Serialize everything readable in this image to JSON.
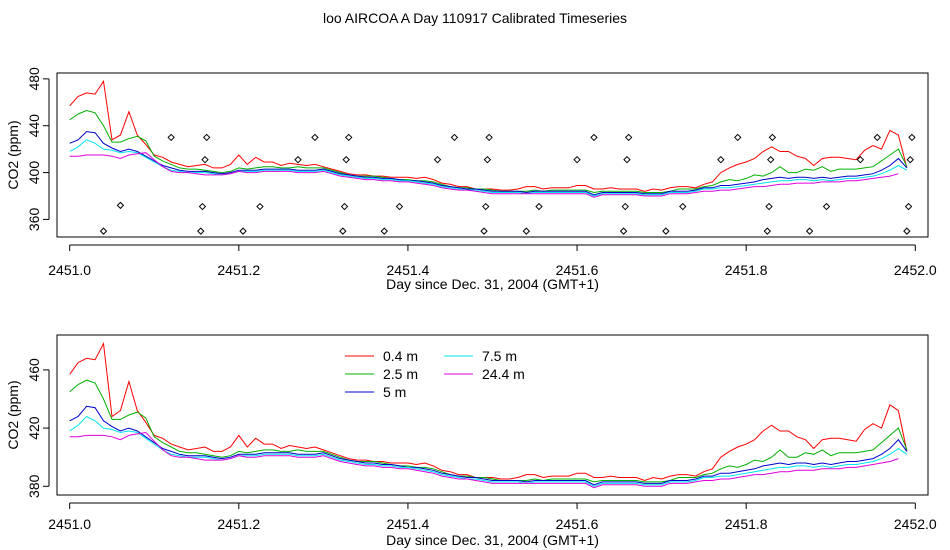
{
  "title": "loo AIRCOA A  Day 110917  Calibrated Timeseries",
  "chart_data": [
    {
      "type": "line",
      "xlabel": "Day since Dec. 31, 2004 (GMT+1)",
      "ylabel": "CO2 (ppm)",
      "xlim": [
        2450.985,
        2452.015
      ],
      "ylim": [
        345,
        485
      ],
      "xticks": [
        2451.0,
        2451.2,
        2451.4,
        2451.6,
        2451.8,
        2452.0
      ],
      "xtick_labels": [
        "2451.0",
        "2451.2",
        "2451.4",
        "2451.6",
        "2451.8",
        "2452.0"
      ],
      "yticks": [
        360,
        400,
        440,
        480
      ],
      "ytick_labels": [
        "360",
        "400",
        "440",
        "480"
      ],
      "legend": null,
      "series_ref": "series",
      "scatter_points": {
        "x": [
          2451.04,
          2451.06,
          2451.12,
          2451.155,
          2451.157,
          2451.16,
          2451.162,
          2451.205,
          2451.225,
          2451.27,
          2451.29,
          2451.323,
          2451.325,
          2451.327,
          2451.33,
          2451.372,
          2451.39,
          2451.435,
          2451.455,
          2451.49,
          2451.492,
          2451.494,
          2451.496,
          2451.54,
          2451.555,
          2451.6,
          2451.62,
          2451.655,
          2451.657,
          2451.659,
          2451.661,
          2451.705,
          2451.725,
          2451.77,
          2451.79,
          2451.825,
          2451.827,
          2451.829,
          2451.831,
          2451.875,
          2451.895,
          2451.935,
          2451.955,
          2451.99,
          2451.992,
          2451.994,
          2451.996
        ],
        "y": [
          350,
          372,
          430,
          350,
          371,
          411,
          430,
          350,
          371,
          411,
          430,
          350,
          371,
          411,
          430,
          350,
          371,
          411,
          430,
          350,
          371,
          411,
          430,
          350,
          371,
          411,
          430,
          350,
          371,
          411,
          430,
          350,
          371,
          411,
          430,
          350,
          371,
          411,
          430,
          350,
          371,
          411,
          430,
          350,
          371,
          411,
          430
        ]
      }
    },
    {
      "type": "line",
      "xlabel": "Day since Dec. 31, 2004 (GMT+1)",
      "ylabel": "CO2 (ppm)",
      "xlim": [
        2450.985,
        2452.015
      ],
      "ylim": [
        374,
        484
      ],
      "xticks": [
        2451.0,
        2451.2,
        2451.4,
        2451.6,
        2451.8,
        2452.0
      ],
      "xtick_labels": [
        "2451.0",
        "2451.2",
        "2451.4",
        "2451.6",
        "2451.8",
        "2452.0"
      ],
      "yticks": [
        380,
        420,
        460
      ],
      "ytick_labels": [
        "380",
        "420",
        "460"
      ],
      "legend": "top-center",
      "series_ref": "series"
    }
  ],
  "series": [
    {
      "name": "0.4 m",
      "color": "#ff0000",
      "x": [
        2451.0,
        2451.01,
        2451.02,
        2451.03,
        2451.04,
        2451.05,
        2451.06,
        2451.07,
        2451.08,
        2451.09,
        2451.1,
        2451.11,
        2451.12,
        2451.13,
        2451.14,
        2451.15,
        2451.16,
        2451.17,
        2451.18,
        2451.19,
        2451.2,
        2451.21,
        2451.22,
        2451.23,
        2451.24,
        2451.25,
        2451.26,
        2451.27,
        2451.28,
        2451.29,
        2451.3,
        2451.31,
        2451.32,
        2451.33,
        2451.34,
        2451.35,
        2451.36,
        2451.37,
        2451.38,
        2451.39,
        2451.4,
        2451.41,
        2451.42,
        2451.43,
        2451.44,
        2451.45,
        2451.46,
        2451.47,
        2451.48,
        2451.49,
        2451.5,
        2451.51,
        2451.52,
        2451.53,
        2451.54,
        2451.55,
        2451.56,
        2451.57,
        2451.58,
        2451.59,
        2451.6,
        2451.61,
        2451.62,
        2451.63,
        2451.64,
        2451.65,
        2451.66,
        2451.67,
        2451.68,
        2451.69,
        2451.7,
        2451.71,
        2451.72,
        2451.73,
        2451.74,
        2451.75,
        2451.76,
        2451.77,
        2451.78,
        2451.79,
        2451.8,
        2451.81,
        2451.82,
        2451.83,
        2451.84,
        2451.85,
        2451.86,
        2451.87,
        2451.88,
        2451.89,
        2451.9,
        2451.91,
        2451.92,
        2451.93,
        2451.94,
        2451.95,
        2451.96,
        2451.97,
        2451.98,
        2451.99
      ],
      "values": [
        457,
        465,
        468,
        467,
        478,
        428,
        432,
        452,
        432,
        424,
        415,
        413,
        409,
        407,
        405,
        406,
        407,
        404,
        404,
        407,
        415,
        407,
        413,
        409,
        409,
        406,
        408,
        407,
        406,
        407,
        405,
        403,
        401,
        399,
        398,
        398,
        397,
        397,
        396,
        396,
        396,
        395,
        396,
        394,
        391,
        390,
        388,
        388,
        386,
        386,
        386,
        385,
        385,
        386,
        388,
        388,
        386,
        387,
        387,
        387,
        389,
        389,
        386,
        386,
        387,
        386,
        386,
        386,
        384,
        386,
        385,
        387,
        388,
        388,
        387,
        390,
        392,
        400,
        404,
        407,
        409,
        412,
        418,
        422,
        418,
        418,
        414,
        412,
        406,
        412,
        413,
        413,
        412,
        411,
        419,
        423,
        420,
        436,
        432,
        404
      ]
    },
    {
      "name": "2.5 m",
      "color": "#00b000",
      "x": [
        2451.0,
        2451.01,
        2451.02,
        2451.03,
        2451.04,
        2451.05,
        2451.06,
        2451.07,
        2451.08,
        2451.09,
        2451.1,
        2451.11,
        2451.12,
        2451.13,
        2451.14,
        2451.15,
        2451.16,
        2451.17,
        2451.18,
        2451.19,
        2451.2,
        2451.21,
        2451.22,
        2451.23,
        2451.24,
        2451.25,
        2451.26,
        2451.27,
        2451.28,
        2451.29,
        2451.3,
        2451.31,
        2451.32,
        2451.33,
        2451.34,
        2451.35,
        2451.36,
        2451.37,
        2451.38,
        2451.39,
        2451.4,
        2451.41,
        2451.42,
        2451.43,
        2451.44,
        2451.45,
        2451.46,
        2451.47,
        2451.48,
        2451.49,
        2451.5,
        2451.51,
        2451.52,
        2451.53,
        2451.54,
        2451.55,
        2451.56,
        2451.57,
        2451.58,
        2451.59,
        2451.6,
        2451.61,
        2451.62,
        2451.63,
        2451.64,
        2451.65,
        2451.66,
        2451.67,
        2451.68,
        2451.69,
        2451.7,
        2451.71,
        2451.72,
        2451.73,
        2451.74,
        2451.75,
        2451.76,
        2451.77,
        2451.78,
        2451.79,
        2451.8,
        2451.81,
        2451.82,
        2451.83,
        2451.84,
        2451.85,
        2451.86,
        2451.87,
        2451.88,
        2451.89,
        2451.9,
        2451.91,
        2451.92,
        2451.93,
        2451.94,
        2451.95,
        2451.96,
        2451.97,
        2451.98,
        2451.99
      ],
      "values": [
        445,
        450,
        453,
        451,
        440,
        426,
        426,
        429,
        431,
        427,
        414,
        410,
        407,
        404,
        403,
        403,
        402,
        401,
        400,
        401,
        404,
        403,
        404,
        405,
        405,
        404,
        404,
        405,
        404,
        404,
        404,
        402,
        400,
        398,
        397,
        397,
        397,
        396,
        395,
        394,
        394,
        393,
        393,
        392,
        390,
        388,
        387,
        387,
        386,
        386,
        385,
        384,
        384,
        384,
        384,
        385,
        384,
        385,
        385,
        385,
        385,
        385,
        383,
        384,
        384,
        384,
        384,
        384,
        383,
        383,
        383,
        384,
        386,
        386,
        386,
        388,
        389,
        392,
        394,
        393,
        395,
        398,
        397,
        400,
        405,
        400,
        400,
        403,
        402,
        405,
        401,
        403,
        403,
        403,
        404,
        405,
        410,
        415,
        420,
        405
      ]
    },
    {
      "name": "5 m",
      "color": "#0000cc",
      "x": [
        2451.0,
        2451.01,
        2451.02,
        2451.03,
        2451.04,
        2451.05,
        2451.06,
        2451.07,
        2451.08,
        2451.09,
        2451.1,
        2451.11,
        2451.12,
        2451.13,
        2451.14,
        2451.15,
        2451.16,
        2451.17,
        2451.18,
        2451.19,
        2451.2,
        2451.21,
        2451.22,
        2451.23,
        2451.24,
        2451.25,
        2451.26,
        2451.27,
        2451.28,
        2451.29,
        2451.3,
        2451.31,
        2451.32,
        2451.33,
        2451.34,
        2451.35,
        2451.36,
        2451.37,
        2451.38,
        2451.39,
        2451.4,
        2451.41,
        2451.42,
        2451.43,
        2451.44,
        2451.45,
        2451.46,
        2451.47,
        2451.48,
        2451.49,
        2451.5,
        2451.51,
        2451.52,
        2451.53,
        2451.54,
        2451.55,
        2451.56,
        2451.57,
        2451.58,
        2451.59,
        2451.6,
        2451.61,
        2451.62,
        2451.63,
        2451.64,
        2451.65,
        2451.66,
        2451.67,
        2451.68,
        2451.69,
        2451.7,
        2451.71,
        2451.72,
        2451.73,
        2451.74,
        2451.75,
        2451.76,
        2451.77,
        2451.78,
        2451.79,
        2451.8,
        2451.81,
        2451.82,
        2451.83,
        2451.84,
        2451.85,
        2451.86,
        2451.87,
        2451.88,
        2451.89,
        2451.9,
        2451.91,
        2451.92,
        2451.93,
        2451.94,
        2451.95,
        2451.96,
        2451.97,
        2451.98,
        2451.99
      ],
      "values": [
        425,
        428,
        435,
        434,
        425,
        421,
        418,
        420,
        418,
        414,
        410,
        406,
        404,
        402,
        401,
        401,
        401,
        400,
        399,
        400,
        402,
        402,
        402,
        403,
        403,
        403,
        403,
        402,
        402,
        402,
        403,
        401,
        399,
        398,
        397,
        396,
        396,
        395,
        395,
        394,
        393,
        393,
        392,
        391,
        389,
        388,
        387,
        386,
        386,
        385,
        384,
        384,
        384,
        384,
        383,
        384,
        384,
        384,
        384,
        384,
        384,
        384,
        381,
        383,
        383,
        383,
        383,
        383,
        382,
        382,
        382,
        384,
        384,
        384,
        385,
        387,
        387,
        389,
        389,
        390,
        391,
        392,
        394,
        395,
        396,
        395,
        396,
        396,
        395,
        396,
        395,
        396,
        397,
        397,
        398,
        399,
        402,
        406,
        412,
        404
      ]
    },
    {
      "name": "7.5 m",
      "color": "#00e5ee",
      "x": [
        2451.0,
        2451.01,
        2451.02,
        2451.03,
        2451.04,
        2451.05,
        2451.06,
        2451.07,
        2451.08,
        2451.09,
        2451.1,
        2451.11,
        2451.12,
        2451.13,
        2451.14,
        2451.15,
        2451.16,
        2451.17,
        2451.18,
        2451.19,
        2451.2,
        2451.21,
        2451.22,
        2451.23,
        2451.24,
        2451.25,
        2451.26,
        2451.27,
        2451.28,
        2451.29,
        2451.3,
        2451.31,
        2451.32,
        2451.33,
        2451.34,
        2451.35,
        2451.36,
        2451.37,
        2451.38,
        2451.39,
        2451.4,
        2451.41,
        2451.42,
        2451.43,
        2451.44,
        2451.45,
        2451.46,
        2451.47,
        2451.48,
        2451.49,
        2451.5,
        2451.51,
        2451.52,
        2451.53,
        2451.54,
        2451.55,
        2451.56,
        2451.57,
        2451.58,
        2451.59,
        2451.6,
        2451.61,
        2451.62,
        2451.63,
        2451.64,
        2451.65,
        2451.66,
        2451.67,
        2451.68,
        2451.69,
        2451.7,
        2451.71,
        2451.72,
        2451.73,
        2451.74,
        2451.75,
        2451.76,
        2451.77,
        2451.78,
        2451.79,
        2451.8,
        2451.81,
        2451.82,
        2451.83,
        2451.84,
        2451.85,
        2451.86,
        2451.87,
        2451.88,
        2451.89,
        2451.9,
        2451.91,
        2451.92,
        2451.93,
        2451.94,
        2451.95,
        2451.96,
        2451.97,
        2451.98,
        2451.99
      ],
      "values": [
        418,
        422,
        428,
        425,
        420,
        419,
        417,
        418,
        417,
        413,
        409,
        405,
        402,
        401,
        400,
        400,
        400,
        399,
        398,
        399,
        401,
        401,
        401,
        402,
        402,
        402,
        402,
        401,
        401,
        401,
        402,
        400,
        398,
        397,
        396,
        395,
        395,
        394,
        394,
        393,
        393,
        392,
        391,
        390,
        388,
        387,
        386,
        385,
        385,
        384,
        383,
        383,
        383,
        383,
        382,
        383,
        383,
        383,
        383,
        383,
        383,
        383,
        380,
        382,
        382,
        382,
        382,
        382,
        381,
        381,
        381,
        383,
        383,
        383,
        384,
        386,
        386,
        387,
        387,
        388,
        389,
        390,
        391,
        392,
        393,
        393,
        394,
        394,
        393,
        394,
        393,
        394,
        395,
        395,
        396,
        397,
        399,
        402,
        406,
        402
      ]
    },
    {
      "name": "24.4 m",
      "color": "#dd00dd",
      "x": [
        2451.0,
        2451.01,
        2451.02,
        2451.03,
        2451.04,
        2451.05,
        2451.06,
        2451.07,
        2451.08,
        2451.09,
        2451.1,
        2451.11,
        2451.12,
        2451.13,
        2451.14,
        2451.15,
        2451.16,
        2451.17,
        2451.18,
        2451.19,
        2451.2,
        2451.21,
        2451.22,
        2451.23,
        2451.24,
        2451.25,
        2451.26,
        2451.27,
        2451.28,
        2451.29,
        2451.3,
        2451.31,
        2451.32,
        2451.33,
        2451.34,
        2451.35,
        2451.36,
        2451.37,
        2451.38,
        2451.39,
        2451.4,
        2451.41,
        2451.42,
        2451.43,
        2451.44,
        2451.45,
        2451.46,
        2451.47,
        2451.48,
        2451.49,
        2451.5,
        2451.51,
        2451.52,
        2451.53,
        2451.54,
        2451.55,
        2451.56,
        2451.57,
        2451.58,
        2451.59,
        2451.6,
        2451.61,
        2451.62,
        2451.63,
        2451.64,
        2451.65,
        2451.66,
        2451.67,
        2451.68,
        2451.69,
        2451.7,
        2451.71,
        2451.72,
        2451.73,
        2451.74,
        2451.75,
        2451.76,
        2451.77,
        2451.78,
        2451.79,
        2451.8,
        2451.81,
        2451.82,
        2451.83,
        2451.84,
        2451.85,
        2451.86,
        2451.87,
        2451.88,
        2451.89,
        2451.9,
        2451.91,
        2451.92,
        2451.93,
        2451.94,
        2451.95,
        2451.96,
        2451.97,
        2451.98
      ],
      "values": [
        414,
        414,
        415,
        415,
        415,
        414,
        412,
        415,
        416,
        417,
        411,
        405,
        401,
        400,
        400,
        399,
        398,
        398,
        398,
        399,
        401,
        400,
        400,
        401,
        401,
        401,
        401,
        400,
        400,
        400,
        401,
        399,
        397,
        396,
        395,
        394,
        394,
        393,
        393,
        392,
        392,
        391,
        390,
        389,
        387,
        386,
        385,
        385,
        384,
        383,
        382,
        382,
        382,
        382,
        382,
        382,
        382,
        382,
        382,
        382,
        382,
        382,
        379,
        381,
        381,
        381,
        381,
        381,
        380,
        380,
        380,
        382,
        382,
        382,
        383,
        384,
        384,
        385,
        385,
        386,
        387,
        388,
        388,
        389,
        390,
        390,
        391,
        391,
        391,
        392,
        392,
        392,
        393,
        393,
        394,
        395,
        396,
        397,
        399
      ]
    }
  ]
}
